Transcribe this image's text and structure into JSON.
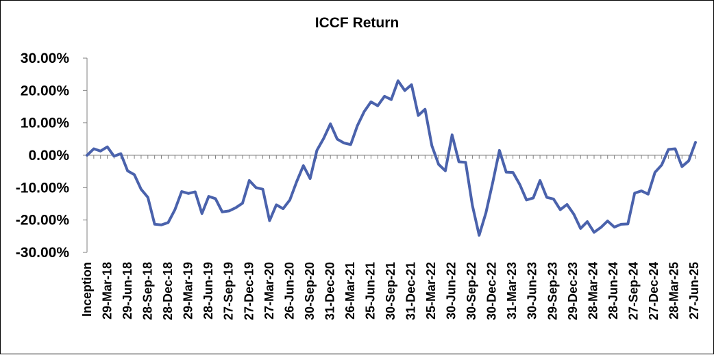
{
  "chart_data": {
    "type": "line",
    "title": "ICCF Return",
    "xlabel": "",
    "ylabel": "",
    "ylim": [
      -0.3,
      0.3
    ],
    "y_ticks": [
      0.3,
      0.2,
      0.1,
      0.0,
      -0.1,
      -0.2,
      -0.3
    ],
    "y_tick_labels": [
      "30.00%",
      "20.00%",
      "10.00%",
      "0.00%",
      "-10.00%",
      "-20.00%",
      "-30.00%"
    ],
    "x_tick_labels": [
      "Inception",
      "29-Mar-18",
      "29-Jun-18",
      "28-Sep-18",
      "28-Dec-18",
      "29-Mar-19",
      "28-Jun-19",
      "27-Sep-19",
      "27-Dec-19",
      "27-Mar-20",
      "26-Jun-20",
      "30-Sep-20",
      "31-Dec-20",
      "26-Mar-21",
      "25-Jun-21",
      "30-Sep-21",
      "31-Dec-21",
      "25-Mar-22",
      "30-Jun-22",
      "30-Sep-22",
      "30-Dec-22",
      "31-Mar-23",
      "30-Jun-23",
      "29-Sep-23",
      "29-Dec-23",
      "28-Mar-24",
      "28-Jun-24",
      "27-Sep-24",
      "27-Dec-24",
      "28-Mar-25",
      "27-Jun-25"
    ],
    "grid": false,
    "legend": "none",
    "line_color": "#4a62ac",
    "series": [
      {
        "values": [
          0.0,
          0.02,
          0.013,
          0.026,
          -0.003,
          0.005,
          -0.048,
          -0.06,
          -0.105,
          -0.13,
          -0.213,
          -0.215,
          -0.208,
          -0.168,
          -0.112,
          -0.118,
          -0.113,
          -0.18,
          -0.127,
          -0.134,
          -0.175,
          -0.172,
          -0.162,
          -0.148,
          -0.078,
          -0.1,
          -0.105,
          -0.202,
          -0.153,
          -0.165,
          -0.138,
          -0.082,
          -0.032,
          -0.072,
          0.015,
          0.052,
          0.097,
          0.05,
          0.038,
          0.033,
          0.092,
          0.135,
          0.165,
          0.153,
          0.182,
          0.172,
          0.23,
          0.2,
          0.218,
          0.123,
          0.142,
          0.03,
          -0.028,
          -0.048,
          0.063,
          -0.02,
          -0.022,
          -0.155,
          -0.247,
          -0.178,
          -0.085,
          0.015,
          -0.052,
          -0.053,
          -0.09,
          -0.138,
          -0.132,
          -0.078,
          -0.13,
          -0.135,
          -0.168,
          -0.152,
          -0.182,
          -0.226,
          -0.205,
          -0.238,
          -0.223,
          -0.203,
          -0.222,
          -0.213,
          -0.212,
          -0.117,
          -0.11,
          -0.12,
          -0.053,
          -0.03,
          0.018,
          0.02,
          -0.035,
          -0.017,
          0.04
        ]
      }
    ]
  }
}
